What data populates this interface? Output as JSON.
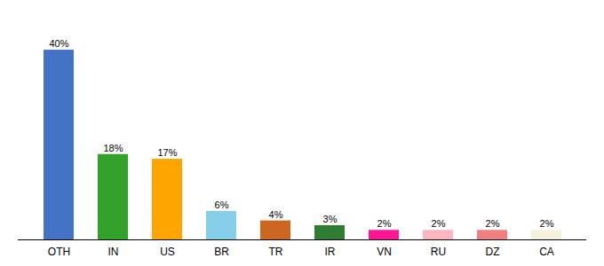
{
  "chart_data": {
    "type": "bar",
    "categories": [
      "OTH",
      "IN",
      "US",
      "BR",
      "TR",
      "IR",
      "VN",
      "RU",
      "DZ",
      "CA"
    ],
    "values": [
      40,
      18,
      17,
      6,
      4,
      3,
      2,
      2,
      2,
      2
    ],
    "value_labels": [
      "40%",
      "18%",
      "17%",
      "6%",
      "4%",
      "3%",
      "2%",
      "2%",
      "2%",
      "2%"
    ],
    "colors": [
      "#4472C4",
      "#33A02C",
      "#FFA500",
      "#87CEEB",
      "#CD6620",
      "#2E7D32",
      "#FF1493",
      "#FFB6C1",
      "#F08080",
      "#F5F0DC"
    ],
    "ylim": [
      0,
      46
    ],
    "grid": false,
    "data_labels": true,
    "tick_labels": "x"
  }
}
